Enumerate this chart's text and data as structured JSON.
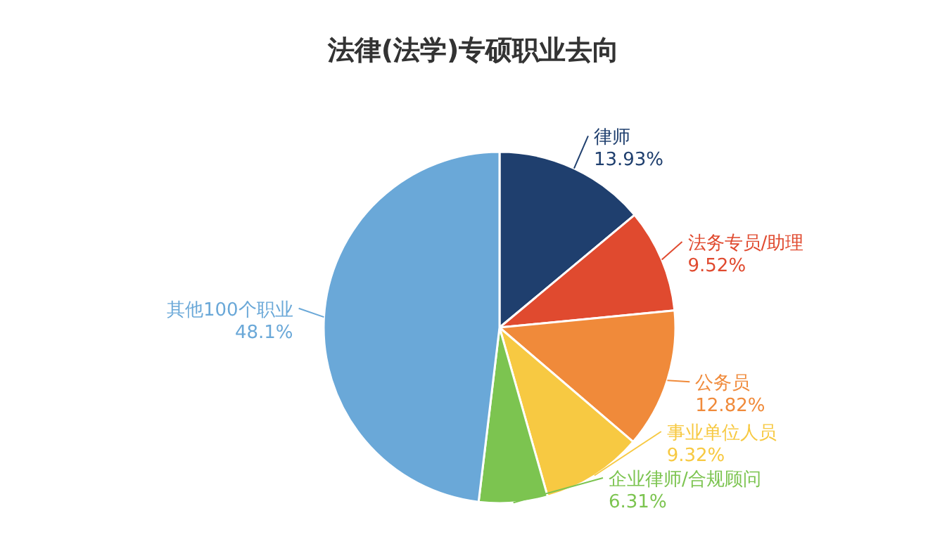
{
  "chart_data": {
    "type": "pie",
    "title": "法律(法学)专硕职业去向",
    "categories": [
      "律师",
      "法务专员/助理",
      "公务员",
      "事业单位人员",
      "企业律师/合规顾问",
      "其他100个职业"
    ],
    "values": [
      13.93,
      9.52,
      12.82,
      9.32,
      6.31,
      48.1
    ],
    "value_labels": [
      "13.93%",
      "9.52%",
      "12.82%",
      "9.32%",
      "6.31%",
      "48.1%"
    ],
    "colors": [
      "#1f3f6e",
      "#e04a2f",
      "#f08a3a",
      "#f7c942",
      "#7cc450",
      "#6aa8d8"
    ]
  }
}
